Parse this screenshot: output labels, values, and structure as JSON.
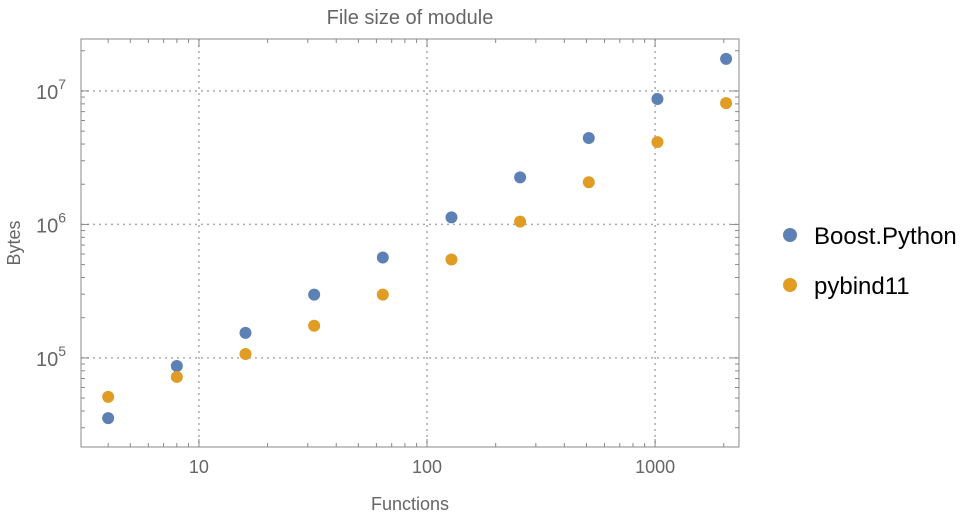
{
  "chart_data": {
    "type": "scatter",
    "title": "File size of module",
    "xlabel": "Functions",
    "ylabel": "Bytes",
    "xscale": "log",
    "yscale": "log",
    "xlim": [
      3.04,
      2333
    ],
    "ylim": [
      21500,
      24500000
    ],
    "grid": true,
    "legend_placement": "right",
    "x_ticks": [
      {
        "value": 10,
        "label": "10"
      },
      {
        "value": 100,
        "label": "100"
      },
      {
        "value": 1000,
        "label": "1000"
      }
    ],
    "y_ticks": [
      {
        "value": 100000,
        "base": "10",
        "exp": "5"
      },
      {
        "value": 1000000,
        "base": "10",
        "exp": "6"
      },
      {
        "value": 10000000,
        "base": "10",
        "exp": "7"
      }
    ],
    "x": [
      4,
      8,
      16,
      32,
      64,
      128,
      256,
      512,
      1024,
      2048
    ],
    "series": [
      {
        "name": "Boost.Python",
        "color": "#5e81b5",
        "values": [
          35400,
          87000,
          154000,
          298000,
          565000,
          1130000,
          2250000,
          4440000,
          8700000,
          17400000
        ]
      },
      {
        "name": "pybind11",
        "color": "#e19c24",
        "values": [
          51000,
          72000,
          107000,
          174000,
          298000,
          546000,
          1050000,
          2070000,
          4140000,
          8100000
        ]
      }
    ]
  }
}
